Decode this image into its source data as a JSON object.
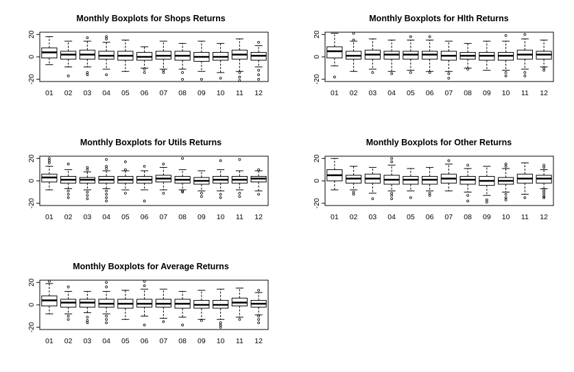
{
  "chart_data": [
    {
      "type": "boxplot",
      "title": "Monthly Boxplots for Shops Returns",
      "categories": [
        "01",
        "02",
        "03",
        "04",
        "05",
        "06",
        "07",
        "08",
        "09",
        "10",
        "11",
        "12"
      ],
      "y_ticks": [
        "20",
        "0",
        "-20"
      ],
      "ylim": [
        -22,
        22
      ],
      "grid": false,
      "boxes": [
        {
          "q1": -1,
          "median": 4,
          "q3": 8,
          "whisker_low": -7,
          "whisker_high": 18,
          "outliers": []
        },
        {
          "q1": -2,
          "median": 2,
          "q3": 5,
          "whisker_low": -9,
          "whisker_high": 14,
          "outliers": [
            -17
          ]
        },
        {
          "q1": -2,
          "median": 2,
          "q3": 6,
          "whisker_low": -9,
          "whisker_high": 14,
          "outliers": [
            17,
            -14,
            -16
          ]
        },
        {
          "q1": -2,
          "median": 1,
          "q3": 5,
          "whisker_low": -11,
          "whisker_high": 13,
          "outliers": [
            16,
            18,
            -16
          ]
        },
        {
          "q1": -3,
          "median": 1,
          "q3": 5,
          "whisker_low": -13,
          "whisker_high": 15,
          "outliers": []
        },
        {
          "q1": -3,
          "median": 0,
          "q3": 4,
          "whisker_low": -10,
          "whisker_high": 9,
          "outliers": [
            -11,
            -14
          ]
        },
        {
          "q1": -2,
          "median": 1,
          "q3": 5,
          "whisker_low": -11,
          "whisker_high": 14,
          "outliers": [
            -12,
            -14
          ]
        },
        {
          "q1": -3,
          "median": 1,
          "q3": 5,
          "whisker_low": -11,
          "whisker_high": 12,
          "outliers": [
            -14,
            -20
          ]
        },
        {
          "q1": -4,
          "median": 0,
          "q3": 4,
          "whisker_low": -13,
          "whisker_high": 14,
          "outliers": [
            -20
          ]
        },
        {
          "q1": -3,
          "median": 0,
          "q3": 4,
          "whisker_low": -14,
          "whisker_high": 12,
          "outliers": [
            -19
          ]
        },
        {
          "q1": -2,
          "median": 2,
          "q3": 6,
          "whisker_low": -13,
          "whisker_high": 16,
          "outliers": [
            -14,
            -18,
            -21
          ]
        },
        {
          "q1": -3,
          "median": 1,
          "q3": 4,
          "whisker_low": -9,
          "whisker_high": 10,
          "outliers": [
            13,
            -12,
            -16,
            -20
          ]
        }
      ]
    },
    {
      "type": "boxplot",
      "title": "Monthly Boxplots for Hlth Returns",
      "categories": [
        "01",
        "02",
        "03",
        "04",
        "05",
        "06",
        "07",
        "08",
        "09",
        "10",
        "11",
        "12"
      ],
      "y_ticks": [
        "20",
        "0",
        "-20"
      ],
      "ylim": [
        -22,
        22
      ],
      "grid": false,
      "boxes": [
        {
          "q1": -1,
          "median": 5,
          "q3": 9,
          "whisker_low": -8,
          "whisker_high": 21,
          "outliers": [
            -18
          ]
        },
        {
          "q1": -2,
          "median": 1,
          "q3": 5,
          "whisker_low": -13,
          "whisker_high": 14,
          "outliers": [
            21,
            15
          ]
        },
        {
          "q1": -2,
          "median": 2,
          "q3": 6,
          "whisker_low": -11,
          "whisker_high": 16,
          "outliers": [
            -14
          ]
        },
        {
          "q1": -2,
          "median": 2,
          "q3": 5,
          "whisker_low": -13,
          "whisker_high": 15,
          "outliers": [
            -15
          ]
        },
        {
          "q1": -2,
          "median": 2,
          "q3": 5,
          "whisker_low": -12,
          "whisker_high": 15,
          "outliers": [
            18,
            -14
          ]
        },
        {
          "q1": -2,
          "median": 2,
          "q3": 5,
          "whisker_low": -13,
          "whisker_high": 15,
          "outliers": [
            18,
            -14
          ]
        },
        {
          "q1": -3,
          "median": 1,
          "q3": 5,
          "whisker_low": -13,
          "whisker_high": 14,
          "outliers": [
            -15,
            -19
          ]
        },
        {
          "q1": -2,
          "median": 1,
          "q3": 4,
          "whisker_low": -10,
          "whisker_high": 12,
          "outliers": [
            -11
          ]
        },
        {
          "q1": -3,
          "median": 1,
          "q3": 4,
          "whisker_low": -12,
          "whisker_high": 14,
          "outliers": []
        },
        {
          "q1": -3,
          "median": 1,
          "q3": 4,
          "whisker_low": -12,
          "whisker_high": 14,
          "outliers": [
            19,
            -14,
            -17
          ]
        },
        {
          "q1": -2,
          "median": 2,
          "q3": 6,
          "whisker_low": -11,
          "whisker_high": 16,
          "outliers": [
            20,
            -14,
            -17
          ]
        },
        {
          "q1": -2,
          "median": 2,
          "q3": 5,
          "whisker_low": -9,
          "whisker_high": 15,
          "outliers": [
            -10,
            -12
          ]
        }
      ]
    },
    {
      "type": "boxplot",
      "title": "Monthly Boxplots for Utils Returns",
      "categories": [
        "01",
        "02",
        "03",
        "04",
        "05",
        "06",
        "07",
        "08",
        "09",
        "10",
        "11",
        "12"
      ],
      "y_ticks": [
        "20",
        "0",
        "-20"
      ],
      "ylim": [
        -22,
        22
      ],
      "grid": false,
      "boxes": [
        {
          "q1": -1,
          "median": 3,
          "q3": 6,
          "whisker_low": -8,
          "whisker_high": 13,
          "outliers": [
            16,
            18,
            20
          ]
        },
        {
          "q1": -2,
          "median": 1,
          "q3": 4,
          "whisker_low": -7,
          "whisker_high": 10,
          "outliers": [
            15,
            -9,
            -12,
            -15
          ]
        },
        {
          "q1": -2,
          "median": 1,
          "q3": 3,
          "whisker_low": -8,
          "whisker_high": 8,
          "outliers": [
            10,
            12,
            -10,
            -13,
            -16
          ]
        },
        {
          "q1": -2,
          "median": 1,
          "q3": 4,
          "whisker_low": -7,
          "whisker_high": 9,
          "outliers": [
            11,
            13,
            19,
            -9,
            -12,
            -15,
            -18
          ]
        },
        {
          "q1": -2,
          "median": 1,
          "q3": 4,
          "whisker_low": -8,
          "whisker_high": 9,
          "outliers": [
            10,
            17,
            -11
          ]
        },
        {
          "q1": -2,
          "median": 1,
          "q3": 4,
          "whisker_low": -8,
          "whisker_high": 9,
          "outliers": [
            13,
            -18
          ]
        },
        {
          "q1": -1,
          "median": 2,
          "q3": 5,
          "whisker_low": -8,
          "whisker_high": 12,
          "outliers": [
            15,
            -11
          ]
        },
        {
          "q1": -2,
          "median": 1,
          "q3": 4,
          "whisker_low": -8,
          "whisker_high": 10,
          "outliers": [
            20,
            -9,
            -10
          ]
        },
        {
          "q1": -3,
          "median": 0,
          "q3": 3,
          "whisker_low": -9,
          "whisker_high": 9,
          "outliers": [
            -11,
            -14
          ]
        },
        {
          "q1": -2,
          "median": 1,
          "q3": 4,
          "whisker_low": -9,
          "whisker_high": 10,
          "outliers": [
            18,
            -12,
            -15
          ]
        },
        {
          "q1": -2,
          "median": 1,
          "q3": 4,
          "whisker_low": -8,
          "whisker_high": 9,
          "outliers": [
            19,
            -11,
            -14
          ]
        },
        {
          "q1": -1,
          "median": 2,
          "q3": 4,
          "whisker_low": -9,
          "whisker_high": 9,
          "outliers": [
            10,
            -12
          ]
        }
      ]
    },
    {
      "type": "boxplot",
      "title": "Monthly Boxplots for Other Returns",
      "categories": [
        "01",
        "02",
        "03",
        "04",
        "05",
        "06",
        "07",
        "08",
        "09",
        "10",
        "11",
        "12"
      ],
      "y_ticks": [
        "20",
        "0",
        "-20"
      ],
      "ylim": [
        -22,
        22
      ],
      "grid": false,
      "boxes": [
        {
          "q1": 0,
          "median": 5,
          "q3": 10,
          "whisker_low": -8,
          "whisker_high": 20,
          "outliers": []
        },
        {
          "q1": -2,
          "median": 2,
          "q3": 5,
          "whisker_low": -8,
          "whisker_high": 13,
          "outliers": [
            -10,
            -12
          ]
        },
        {
          "q1": -2,
          "median": 2,
          "q3": 6,
          "whisker_low": -11,
          "whisker_high": 12,
          "outliers": [
            -16
          ]
        },
        {
          "q1": -3,
          "median": 1,
          "q3": 5,
          "whisker_low": -9,
          "whisker_high": 14,
          "outliers": [
            17,
            20,
            -11,
            -13,
            -16
          ]
        },
        {
          "q1": -3,
          "median": 1,
          "q3": 4,
          "whisker_low": -9,
          "whisker_high": 11,
          "outliers": [
            -15
          ]
        },
        {
          "q1": -3,
          "median": 1,
          "q3": 4,
          "whisker_low": -9,
          "whisker_high": 12,
          "outliers": [
            -11,
            -13
          ]
        },
        {
          "q1": -2,
          "median": 2,
          "q3": 6,
          "whisker_low": -9,
          "whisker_high": 15,
          "outliers": [
            18
          ]
        },
        {
          "q1": -3,
          "median": 1,
          "q3": 4,
          "whisker_low": -10,
          "whisker_high": 11,
          "outliers": [
            14,
            -13,
            -18
          ]
        },
        {
          "q1": -4,
          "median": 0,
          "q3": 4,
          "whisker_low": -13,
          "whisker_high": 13,
          "outliers": [
            -17,
            -19
          ]
        },
        {
          "q1": -3,
          "median": 0,
          "q3": 3,
          "whisker_low": -10,
          "whisker_high": 11,
          "outliers": [
            13,
            15,
            -12,
            -15,
            -17
          ]
        },
        {
          "q1": -2,
          "median": 2,
          "q3": 6,
          "whisker_low": -12,
          "whisker_high": 16,
          "outliers": [
            -15
          ]
        },
        {
          "q1": -2,
          "median": 2,
          "q3": 5,
          "whisker_low": -7,
          "whisker_high": 10,
          "outliers": [
            12,
            14,
            -8,
            -10,
            -12,
            -14,
            -15
          ]
        }
      ]
    },
    {
      "type": "boxplot",
      "title": "Monthly Boxplots for Average Returns",
      "categories": [
        "01",
        "02",
        "03",
        "04",
        "05",
        "06",
        "07",
        "08",
        "09",
        "10",
        "11",
        "12"
      ],
      "y_ticks": [
        "20",
        "0",
        "-20"
      ],
      "ylim": [
        -22,
        22
      ],
      "grid": false,
      "boxes": [
        {
          "q1": -1,
          "median": 4,
          "q3": 8,
          "whisker_low": -8,
          "whisker_high": 19,
          "outliers": [
            21
          ]
        },
        {
          "q1": -2,
          "median": 2,
          "q3": 5,
          "whisker_low": -8,
          "whisker_high": 12,
          "outliers": [
            16,
            -10,
            -13
          ]
        },
        {
          "q1": -2,
          "median": 2,
          "q3": 5,
          "whisker_low": -7,
          "whisker_high": 12,
          "outliers": [
            -11,
            -14,
            -16
          ]
        },
        {
          "q1": -2,
          "median": 1,
          "q3": 5,
          "whisker_low": -8,
          "whisker_high": 12,
          "outliers": [
            16,
            20,
            -10,
            -13,
            -16
          ]
        },
        {
          "q1": -3,
          "median": 1,
          "q3": 5,
          "whisker_low": -13,
          "whisker_high": 13,
          "outliers": []
        },
        {
          "q1": -2,
          "median": 1,
          "q3": 5,
          "whisker_low": -10,
          "whisker_high": 14,
          "outliers": [
            17,
            21,
            -18
          ]
        },
        {
          "q1": -2,
          "median": 1,
          "q3": 5,
          "whisker_low": -12,
          "whisker_high": 14,
          "outliers": [
            -15
          ]
        },
        {
          "q1": -3,
          "median": 1,
          "q3": 5,
          "whisker_low": -11,
          "whisker_high": 12,
          "outliers": [
            -18
          ]
        },
        {
          "q1": -3,
          "median": 0,
          "q3": 4,
          "whisker_low": -13,
          "whisker_high": 13,
          "outliers": [
            -14
          ]
        },
        {
          "q1": -3,
          "median": 0,
          "q3": 4,
          "whisker_low": -13,
          "whisker_high": 14,
          "outliers": [
            -16,
            -18,
            -20
          ]
        },
        {
          "q1": -1,
          "median": 2,
          "q3": 6,
          "whisker_low": -11,
          "whisker_high": 15,
          "outliers": [
            -13
          ]
        },
        {
          "q1": -2,
          "median": 1,
          "q3": 4,
          "whisker_low": -9,
          "whisker_high": 11,
          "outliers": [
            13,
            -10,
            -13,
            -16
          ]
        }
      ]
    }
  ]
}
